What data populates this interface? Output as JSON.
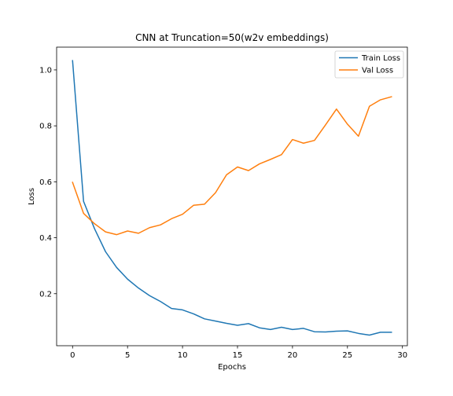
{
  "chart_data": {
    "type": "line",
    "title": "CNN at Truncation=50(w2v embeddings)",
    "xlabel": "Epochs",
    "ylabel": "Loss",
    "xlim": [
      -1.45,
      30.45
    ],
    "ylim": [
      0.014,
      1.0813
    ],
    "xticks": [
      0,
      5,
      10,
      15,
      20,
      25,
      30
    ],
    "yticks": [
      0.2,
      0.4,
      0.6,
      0.8,
      1.0
    ],
    "xtick_labels": [
      "0",
      "5",
      "10",
      "15",
      "20",
      "25",
      "30"
    ],
    "ytick_labels": [
      "0.2",
      "0.4",
      "0.6",
      "0.8",
      "1.0"
    ],
    "grid": false,
    "legend_position": "top-right",
    "x": [
      0,
      1,
      2,
      3,
      4,
      5,
      6,
      7,
      8,
      9,
      10,
      11,
      12,
      13,
      14,
      15,
      16,
      17,
      18,
      19,
      20,
      21,
      22,
      23,
      24,
      25,
      26,
      27,
      28,
      29
    ],
    "series": [
      {
        "name": "Train Loss",
        "color": "#1f77b4",
        "values": [
          1.033,
          0.53,
          0.432,
          0.35,
          0.294,
          0.252,
          0.22,
          0.193,
          0.172,
          0.147,
          0.142,
          0.128,
          0.11,
          0.102,
          0.094,
          0.087,
          0.093,
          0.078,
          0.072,
          0.08,
          0.072,
          0.076,
          0.064,
          0.063,
          0.066,
          0.067,
          0.058,
          0.052,
          0.062,
          0.062
        ]
      },
      {
        "name": "Val Loss",
        "color": "#ff7f0e",
        "values": [
          0.598,
          0.487,
          0.45,
          0.421,
          0.411,
          0.424,
          0.416,
          0.436,
          0.446,
          0.468,
          0.484,
          0.516,
          0.52,
          0.561,
          0.625,
          0.653,
          0.64,
          0.664,
          0.68,
          0.697,
          0.751,
          0.738,
          0.748,
          0.803,
          0.86,
          0.806,
          0.763,
          0.87,
          0.893,
          0.904
        ]
      }
    ]
  }
}
